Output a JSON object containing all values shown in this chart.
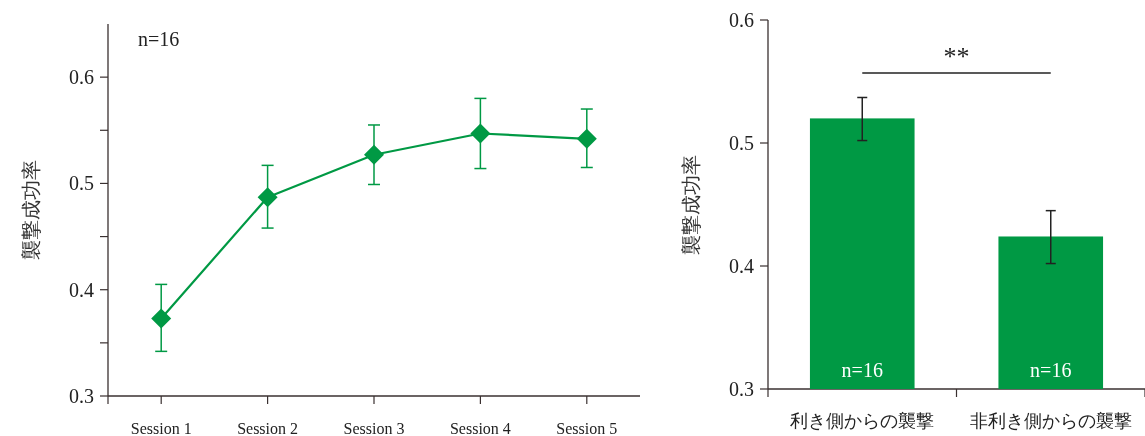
{
  "chart_data": [
    {
      "type": "line",
      "ylabel": "襲撃成功率",
      "categories": [
        "Session 1",
        "Session 2",
        "Session 3",
        "Session 4",
        "Session 5"
      ],
      "series": [
        {
          "color": "#009944",
          "values": [
            0.373,
            0.487,
            0.527,
            0.547,
            0.542
          ],
          "errors": [
            [
              0.342,
              0.405
            ],
            [
              0.458,
              0.517
            ],
            [
              0.499,
              0.555
            ],
            [
              0.514,
              0.58
            ],
            [
              0.515,
              0.57
            ]
          ]
        }
      ],
      "marker": "diamond",
      "ylim": [
        0.3,
        0.65
      ],
      "yticks": [
        0.3,
        {
          "value": 0.35,
          "label": null
        },
        0.4,
        {
          "value": 0.45,
          "label": null
        },
        0.5,
        {
          "value": 0.55,
          "label": null
        },
        0.6
      ],
      "annotations": [
        "n=16"
      ]
    },
    {
      "type": "bar",
      "ylabel": "襲撃成功率",
      "categories": [
        "利き側からの襲撃",
        "非利き側からの襲撃"
      ],
      "values": [
        0.52,
        0.424
      ],
      "color": "#009944",
      "errors": [
        [
          0.502,
          0.537
        ],
        [
          0.402,
          0.445
        ]
      ],
      "ylim": [
        0.3,
        0.6
      ],
      "yticks": [
        0.3,
        0.4,
        0.5,
        0.6
      ],
      "annotations": [
        "**",
        "n=16",
        "n=16"
      ]
    }
  ]
}
